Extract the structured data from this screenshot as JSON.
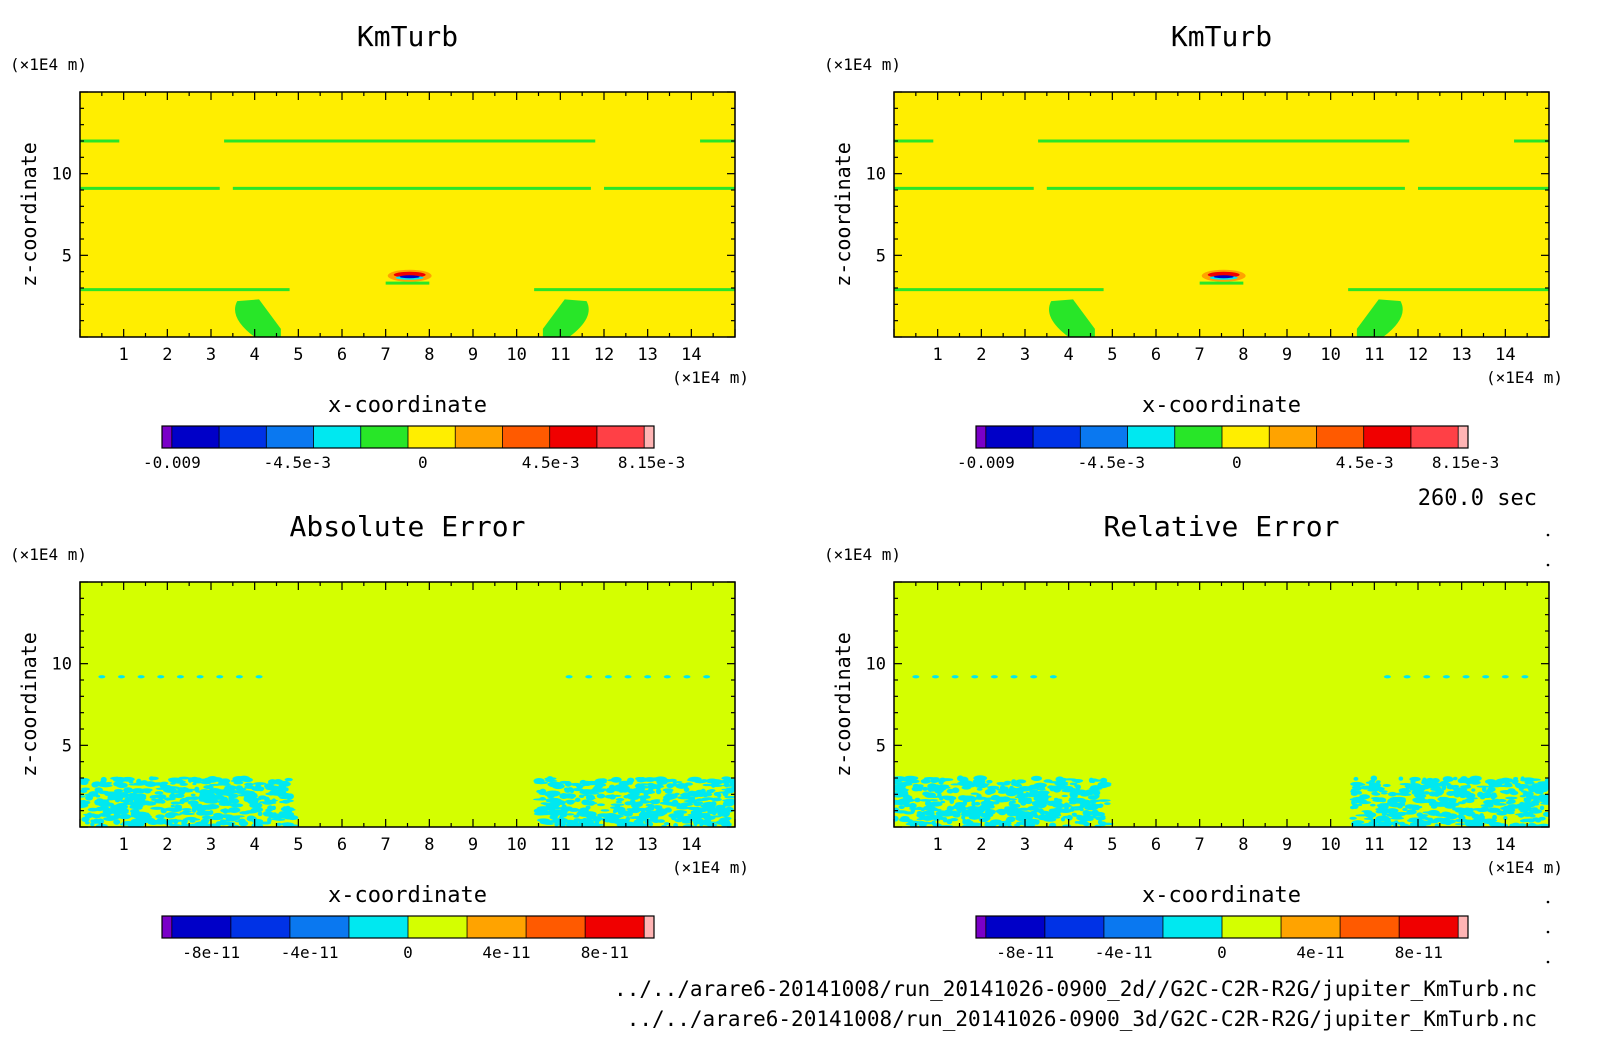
{
  "time_label": "260.0 sec",
  "files": [
    "../../arare6-20141008/run_20141026-0900_2d//G2C-C2R-R2G/jupiter_KmTurb.nc",
    "../../arare6-20141008/run_20141026-0900_3d/G2C-C2R-R2G/jupiter_KmTurb.nc"
  ],
  "chart_data": [
    {
      "type": "heatmap",
      "title": "KmTurb",
      "xlabel": "x-coordinate",
      "ylabel": "z-coordinate",
      "x_unit": "(×1E4 m)",
      "y_unit": "(×1E4 m)",
      "xlim": [
        0,
        15
      ],
      "ylim": [
        0,
        15
      ],
      "xticks": [
        1,
        2,
        3,
        4,
        5,
        6,
        7,
        8,
        9,
        10,
        11,
        12,
        13,
        14
      ],
      "yticks": [
        5,
        10
      ],
      "background_color": "#ffee00",
      "colorbar": {
        "colors": [
          "#7a00c8",
          "#0000c8",
          "#0032e6",
          "#0a78f0",
          "#00e8f0",
          "#28e628",
          "#ffee00",
          "#ffa300",
          "#ff5a00",
          "#f00000",
          "#ff4046",
          "#ffb4b4"
        ],
        "tick_labels": [
          "-0.009",
          "-4.5e-3",
          "0",
          "4.5e-3",
          "8.15e-3"
        ],
        "tick_fracs": [
          0.02,
          0.275,
          0.53,
          0.79,
          0.995
        ]
      },
      "features": [
        {
          "kind": "band",
          "color": "#28e628",
          "x0": 0,
          "x1": 0.9,
          "z": 12.0
        },
        {
          "kind": "band",
          "color": "#28e628",
          "x0": 3.3,
          "x1": 11.8,
          "z": 12.0
        },
        {
          "kind": "band",
          "color": "#28e628",
          "x0": 14.2,
          "x1": 15,
          "z": 12.0
        },
        {
          "kind": "band",
          "color": "#28e628",
          "x0": 0,
          "x1": 3.2,
          "z": 9.1
        },
        {
          "kind": "band",
          "color": "#28e628",
          "x0": 3.5,
          "x1": 11.7,
          "z": 9.1
        },
        {
          "kind": "band",
          "color": "#28e628",
          "x0": 12.0,
          "x1": 15,
          "z": 9.1
        },
        {
          "kind": "band",
          "color": "#28e628",
          "x0": 0,
          "x1": 4.8,
          "z": 2.9
        },
        {
          "kind": "band",
          "color": "#28e628",
          "x0": 10.4,
          "x1": 15,
          "z": 2.9
        },
        {
          "kind": "band",
          "color": "#28e628",
          "x0": 7.0,
          "x1": 8.0,
          "z": 3.3
        }
      ]
    },
    {
      "type": "heatmap",
      "title": "KmTurb",
      "xlabel": "x-coordinate",
      "ylabel": "z-coordinate",
      "x_unit": "(×1E4 m)",
      "y_unit": "(×1E4 m)",
      "xlim": [
        0,
        15
      ],
      "ylim": [
        0,
        15
      ],
      "xticks": [
        1,
        2,
        3,
        4,
        5,
        6,
        7,
        8,
        9,
        10,
        11,
        12,
        13,
        14
      ],
      "yticks": [
        5,
        10
      ],
      "background_color": "#ffee00",
      "colorbar": {
        "colors": [
          "#7a00c8",
          "#0000c8",
          "#0032e6",
          "#0a78f0",
          "#00e8f0",
          "#28e628",
          "#ffee00",
          "#ffa300",
          "#ff5a00",
          "#f00000",
          "#ff4046",
          "#ffb4b4"
        ],
        "tick_labels": [
          "-0.009",
          "-4.5e-3",
          "0",
          "4.5e-3",
          "8.15e-3"
        ],
        "tick_fracs": [
          0.02,
          0.275,
          0.53,
          0.79,
          0.995
        ]
      },
      "features": [
        {
          "kind": "band",
          "color": "#28e628",
          "x0": 0,
          "x1": 0.9,
          "z": 12.0
        },
        {
          "kind": "band",
          "color": "#28e628",
          "x0": 3.3,
          "x1": 11.8,
          "z": 12.0
        },
        {
          "kind": "band",
          "color": "#28e628",
          "x0": 14.2,
          "x1": 15,
          "z": 12.0
        },
        {
          "kind": "band",
          "color": "#28e628",
          "x0": 0,
          "x1": 3.2,
          "z": 9.1
        },
        {
          "kind": "band",
          "color": "#28e628",
          "x0": 3.5,
          "x1": 11.7,
          "z": 9.1
        },
        {
          "kind": "band",
          "color": "#28e628",
          "x0": 12.0,
          "x1": 15,
          "z": 9.1
        },
        {
          "kind": "band",
          "color": "#28e628",
          "x0": 0,
          "x1": 4.8,
          "z": 2.9
        },
        {
          "kind": "band",
          "color": "#28e628",
          "x0": 10.4,
          "x1": 15,
          "z": 2.9
        },
        {
          "kind": "band",
          "color": "#28e628",
          "x0": 7.0,
          "x1": 8.0,
          "z": 3.3
        }
      ]
    },
    {
      "type": "heatmap",
      "title": "Absolute Error",
      "xlabel": "x-coordinate",
      "ylabel": "z-coordinate",
      "x_unit": "(×1E4 m)",
      "y_unit": "(×1E4 m)",
      "xlim": [
        0,
        15
      ],
      "ylim": [
        0,
        15
      ],
      "xticks": [
        1,
        2,
        3,
        4,
        5,
        6,
        7,
        8,
        9,
        10,
        11,
        12,
        13,
        14
      ],
      "yticks": [
        5,
        10
      ],
      "background_color": "#d4ff00",
      "colorbar": {
        "colors": [
          "#7a00c8",
          "#0000c8",
          "#0032e6",
          "#0a78f0",
          "#00e8f0",
          "#d4ff00",
          "#ffa300",
          "#ff5a00",
          "#f00000",
          "#ffb4b4"
        ],
        "tick_labels": [
          "-8e-11",
          "-4e-11",
          "0",
          "4e-11",
          "8e-11"
        ],
        "tick_fracs": [
          0.1,
          0.3,
          0.5,
          0.7,
          0.9
        ]
      },
      "features": [
        {
          "kind": "dots",
          "color": "#00e8f0",
          "x0": 0.5,
          "x1": 4.2,
          "z": 9.2
        },
        {
          "kind": "dots",
          "color": "#00e8f0",
          "x0": 11.2,
          "x1": 14.5,
          "z": 9.2
        },
        {
          "kind": "speckle",
          "color": "#00e8f0",
          "x0": 0,
          "x1": 4.9,
          "z0": 0,
          "z1": 3.0
        },
        {
          "kind": "speckle",
          "color": "#00e8f0",
          "x0": 10.5,
          "x1": 15,
          "z0": 0,
          "z1": 3.0
        }
      ]
    },
    {
      "type": "heatmap",
      "title": "Relative Error",
      "xlabel": "x-coordinate",
      "ylabel": "z-coordinate",
      "x_unit": "(×1E4 m)",
      "y_unit": "(×1E4 m)",
      "xlim": [
        0,
        15
      ],
      "ylim": [
        0,
        15
      ],
      "xticks": [
        1,
        2,
        3,
        4,
        5,
        6,
        7,
        8,
        9,
        10,
        11,
        12,
        13,
        14
      ],
      "yticks": [
        5,
        10
      ],
      "background_color": "#d4ff00",
      "colorbar": {
        "colors": [
          "#7a00c8",
          "#0000c8",
          "#0032e6",
          "#0a78f0",
          "#00e8f0",
          "#d4ff00",
          "#ffa300",
          "#ff5a00",
          "#f00000",
          "#ffb4b4"
        ],
        "tick_labels": [
          "-8e-11",
          "-4e-11",
          "0",
          "4e-11",
          "8e-11"
        ],
        "tick_fracs": [
          0.1,
          0.3,
          0.5,
          0.7,
          0.9
        ]
      },
      "features": [
        {
          "kind": "dots",
          "color": "#00e8f0",
          "x0": 0.5,
          "x1": 4.1,
          "z": 9.2
        },
        {
          "kind": "dots",
          "color": "#00e8f0",
          "x0": 11.3,
          "x1": 14.6,
          "z": 9.2
        },
        {
          "kind": "speckle",
          "color": "#00e8f0",
          "x0": 0,
          "x1": 4.9,
          "z0": 0,
          "z1": 3.0
        },
        {
          "kind": "speckle",
          "color": "#00e8f0",
          "x0": 10.5,
          "x1": 15,
          "z0": 0,
          "z1": 3.0
        }
      ]
    }
  ]
}
